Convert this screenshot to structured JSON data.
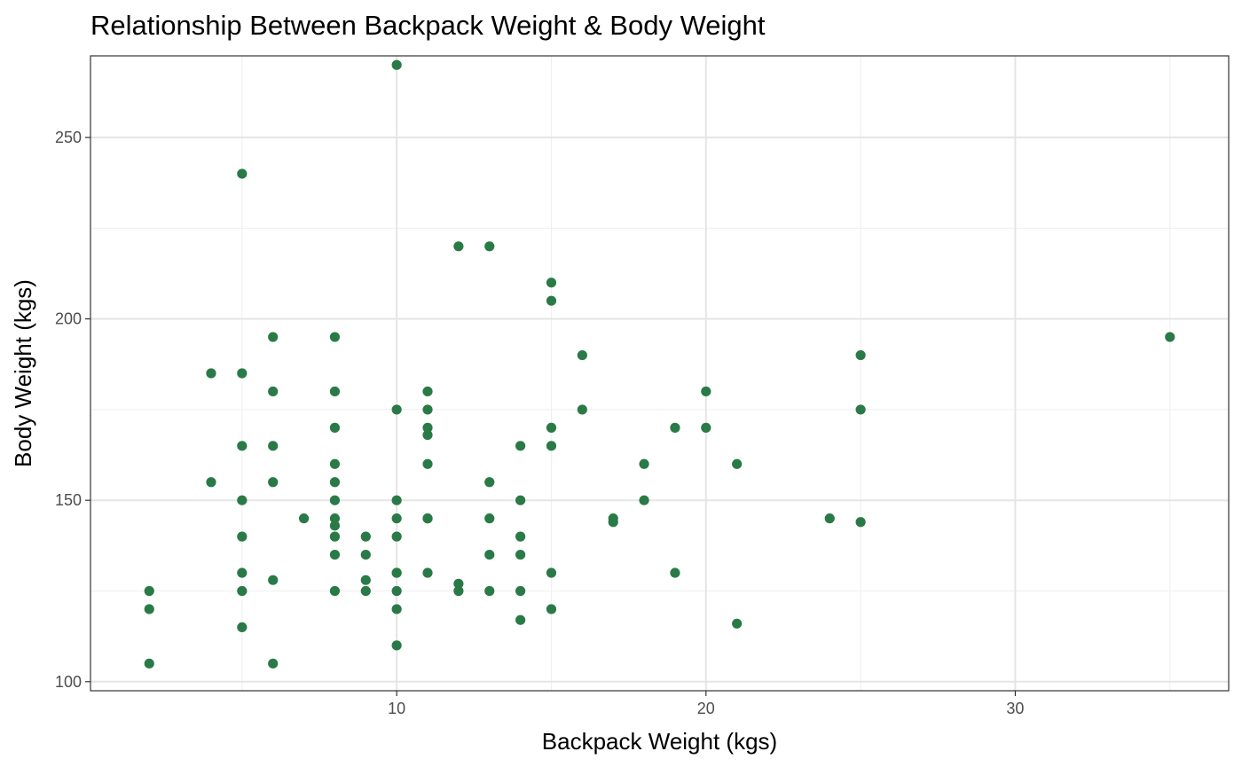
{
  "chart_data": {
    "type": "scatter",
    "title": "Relationship Between Backpack Weight & Body Weight",
    "xlabel": "Backpack Weight (kgs)",
    "ylabel": "Body Weight (kgs)",
    "xlim": [
      0.1,
      36.9
    ],
    "ylim": [
      97.5,
      272.5
    ],
    "xticks": [
      10,
      20,
      30
    ],
    "yticks": [
      100,
      150,
      200,
      250
    ],
    "xminor": [
      5,
      15,
      25,
      35
    ],
    "yminor": [
      125,
      175,
      225,
      275
    ],
    "grid": true,
    "point_color": "#2a7a47",
    "series": [
      {
        "x": [
          2,
          2,
          2,
          4,
          4,
          5,
          5,
          5,
          5,
          5,
          5,
          5,
          5,
          6,
          6,
          6,
          6,
          6,
          6,
          7,
          8,
          8,
          8,
          8,
          8,
          8,
          8,
          8,
          8,
          8,
          8,
          9,
          9,
          9,
          9,
          10,
          10,
          10,
          10,
          10,
          10,
          10,
          10,
          10,
          10,
          11,
          11,
          11,
          11,
          11,
          11,
          11,
          11,
          12,
          12,
          12,
          13,
          13,
          13,
          13,
          13,
          14,
          14,
          14,
          14,
          14,
          14,
          15,
          15,
          15,
          15,
          15,
          15,
          16,
          16,
          17,
          17,
          18,
          18,
          19,
          19,
          20,
          20,
          21,
          21,
          24,
          25,
          25,
          25,
          35
        ],
        "y": [
          125,
          120,
          105,
          185,
          155,
          240,
          185,
          165,
          150,
          140,
          130,
          125,
          115,
          195,
          180,
          165,
          155,
          128,
          105,
          145,
          195,
          180,
          170,
          160,
          155,
          150,
          145,
          143,
          140,
          135,
          125,
          140,
          135,
          128,
          125,
          270,
          175,
          150,
          145,
          140,
          130,
          125,
          120,
          110,
          130,
          180,
          175,
          170,
          168,
          160,
          145,
          130,
          145,
          220,
          127,
          125,
          220,
          155,
          145,
          135,
          125,
          165,
          150,
          140,
          135,
          125,
          117,
          210,
          205,
          170,
          165,
          130,
          120,
          190,
          175,
          145,
          144,
          160,
          150,
          170,
          130,
          180,
          170,
          160,
          116,
          145,
          190,
          175,
          144,
          195
        ]
      }
    ]
  }
}
